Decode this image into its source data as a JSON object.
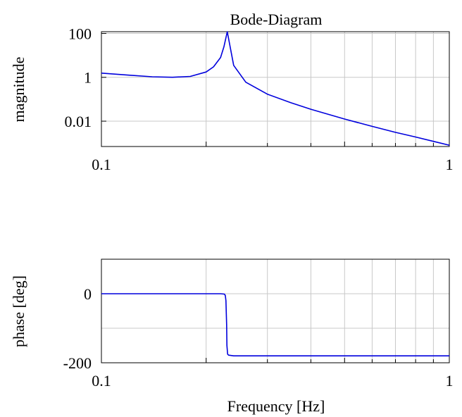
{
  "chart_data": [
    {
      "type": "line",
      "title": "Bode-Diagram",
      "xlabel": "",
      "ylabel": "magnitude",
      "x_scale": "log",
      "y_scale": "log",
      "xlim": [
        0.1,
        1
      ],
      "ylim": [
        0.0007,
        120
      ],
      "grid": true,
      "x_ticks": [
        0.1,
        1
      ],
      "x_tick_labels": [
        "0.1",
        "1"
      ],
      "y_ticks": [
        100,
        1,
        0.01
      ],
      "y_tick_labels": [
        "100",
        "1",
        "0.01"
      ],
      "line_color": "#0000dd",
      "series": [
        {
          "x": [
            0.1,
            0.12,
            0.14,
            0.16,
            0.18,
            0.2,
            0.21,
            0.22,
            0.225,
            0.23,
            0.24,
            0.26,
            0.3,
            0.35,
            0.4,
            0.5,
            0.6,
            0.7,
            0.8,
            0.9,
            1.0
          ],
          "values": [
            1.55,
            1.25,
            1.06,
            1.0,
            1.1,
            1.75,
            3.0,
            8.0,
            25,
            120,
            3.5,
            0.6,
            0.17,
            0.07,
            0.035,
            0.0125,
            0.0058,
            0.0031,
            0.0019,
            0.0012,
            0.0008
          ]
        }
      ]
    },
    {
      "type": "line",
      "title": "",
      "xlabel": "Frequency [Hz]",
      "ylabel": "phase [deg]",
      "x_scale": "log",
      "xlim": [
        0.1,
        1
      ],
      "ylim": [
        -200,
        100
      ],
      "grid": true,
      "x_ticks": [
        0.1,
        1
      ],
      "x_tick_labels": [
        "0.1",
        "1"
      ],
      "y_ticks": [
        0,
        -200
      ],
      "y_tick_labels": [
        "0",
        "-200"
      ],
      "line_color": "#0000dd",
      "series": [
        {
          "x": [
            0.1,
            0.15,
            0.2,
            0.22,
            0.2255,
            0.227,
            0.228,
            0.229,
            0.2295,
            0.2305,
            0.232,
            0.24,
            0.3,
            0.5,
            1.0
          ],
          "values": [
            0,
            0,
            0,
            0,
            -1,
            -5,
            -20,
            -90,
            -150,
            -175,
            -178,
            -180,
            -180,
            -180,
            -180
          ]
        }
      ]
    }
  ]
}
